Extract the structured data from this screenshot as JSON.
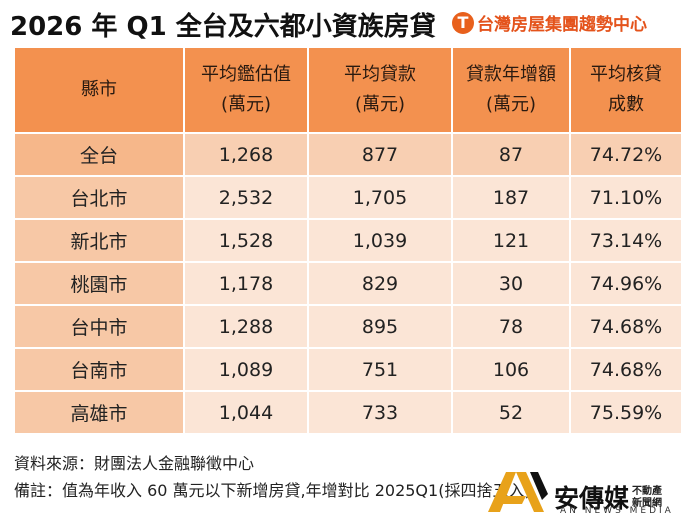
{
  "header": {
    "title": "2026 年 Q1 全台及六都小資族房貸",
    "brand_name": "台灣房屋集團趨勢中心",
    "brand_icon": "tw-logo-icon",
    "brand_color": "#e4531b"
  },
  "table": {
    "columns": [
      {
        "line1": "縣市",
        "line2": ""
      },
      {
        "line1": "平均鑑估值",
        "line2": "(萬元)"
      },
      {
        "line1": "平均貸款",
        "line2": "(萬元)"
      },
      {
        "line1": "貸款年增額",
        "line2": "(萬元)"
      },
      {
        "line1": "平均核貸",
        "line2": "成數"
      }
    ],
    "rows": [
      {
        "city": "全台",
        "appraisal": "1,268",
        "loan": "877",
        "growth": "87",
        "ratio": "74.72%"
      },
      {
        "city": "台北市",
        "appraisal": "2,532",
        "loan": "1,705",
        "growth": "187",
        "ratio": "71.10%"
      },
      {
        "city": "新北市",
        "appraisal": "1,528",
        "loan": "1,039",
        "growth": "121",
        "ratio": "73.14%"
      },
      {
        "city": "桃園市",
        "appraisal": "1,178",
        "loan": "829",
        "growth": "30",
        "ratio": "74.96%"
      },
      {
        "city": "台中市",
        "appraisal": "1,288",
        "loan": "895",
        "growth": "78",
        "ratio": "74.68%"
      },
      {
        "city": "台南市",
        "appraisal": "1,089",
        "loan": "751",
        "growth": "106",
        "ratio": "74.68%"
      },
      {
        "city": "高雄市",
        "appraisal": "1,044",
        "loan": "733",
        "growth": "52",
        "ratio": "75.59%"
      }
    ],
    "header_color": "#f3914f",
    "city_color": "#f7c8a6",
    "cell_color": "#fbe5d6"
  },
  "notes": {
    "source": "資料來源：財團法人金融聯徵中心",
    "remark": "備註：值為年收入 60 萬元以下新增房貸,年增對比 2025Q1(採四捨五入)"
  },
  "watermark": {
    "main": "安傳媒",
    "side_line1": "不動產",
    "side_line2": "新聞網",
    "english": "AN NEWS MEDIA"
  }
}
